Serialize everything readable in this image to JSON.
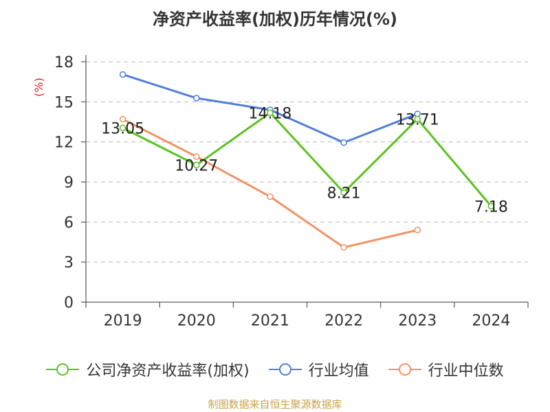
{
  "title": "净资产收益率(加权)历年情况(%)",
  "source": "制图数据来自恒生聚源数据库",
  "colors": {
    "company": "#5ac21e",
    "industry_avg": "#4f7ed9",
    "industry_median": "#f59263",
    "axis": "#333333",
    "grid": "#bbbbbb",
    "unit": "#e02020"
  },
  "chart_data": {
    "type": "line",
    "title": "净资产收益率(加权)历年情况(%)",
    "categories": [
      "2019",
      "2020",
      "2021",
      "2022",
      "2023",
      "2024"
    ],
    "y_unit": "(%)",
    "ylim": [
      0,
      18
    ],
    "yticks": [
      0,
      3,
      6,
      9,
      12,
      15,
      18
    ],
    "grid": "horizontal dashed",
    "legend_position": "bottom",
    "series": [
      {
        "name": "公司净资产收益率(加权)",
        "key": "company",
        "values": [
          13.05,
          10.27,
          14.18,
          8.21,
          13.71,
          7.18
        ],
        "show_labels": true
      },
      {
        "name": "行业均值",
        "key": "industry_avg",
        "values": [
          17.05,
          15.28,
          14.4,
          11.95,
          14.1,
          null
        ],
        "show_labels": false
      },
      {
        "name": "行业中位数",
        "key": "industry_median",
        "values": [
          13.7,
          10.9,
          7.9,
          4.1,
          5.4,
          null
        ],
        "show_labels": false
      }
    ]
  }
}
